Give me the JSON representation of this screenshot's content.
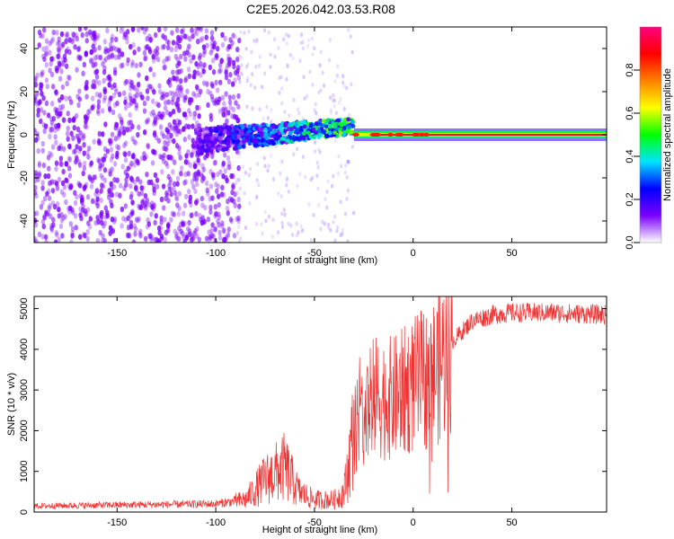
{
  "title": "C2E5.2026.042.03.53.R08",
  "chart_data": [
    {
      "type": "heatmap",
      "name": "spectrogram",
      "xlabel": "Height of straight line (km)",
      "ylabel": "Frequency (Hz)",
      "xlim": [
        -192,
        98
      ],
      "ylim": [
        -50,
        50
      ],
      "xticks": [
        -150,
        -100,
        -50,
        0,
        50
      ],
      "yticks": [
        -40,
        -20,
        0,
        20,
        40
      ],
      "colorbar": {
        "label": "Normalized spectral amplitude",
        "range": [
          0,
          1
        ],
        "ticks": [
          "0.0",
          "0.2",
          "0.4",
          "0.6",
          "0.8"
        ],
        "colors": [
          "#ffffff",
          "#7b00ff",
          "#0000ff",
          "#00e5ff",
          "#00ff00",
          "#ffff00",
          "#ff8000",
          "#ff0000",
          "#ff0080"
        ]
      },
      "features": [
        {
          "region": "noise",
          "x_range": [
            -192,
            -88
          ],
          "freq_range": [
            -50,
            50
          ],
          "amplitude": 0.12
        },
        {
          "region": "onset",
          "x_range": [
            -110,
            -30
          ],
          "freq_center_start": -3,
          "freq_center_end": 4,
          "amplitude": 0.35
        },
        {
          "region": "carrier",
          "x_range": [
            -30,
            98
          ],
          "freq_center": 0,
          "amplitude": 0.9
        }
      ]
    },
    {
      "type": "line",
      "name": "snr",
      "xlabel": "Height of straight line (km)",
      "ylabel": "SNR (10 * v/v)",
      "xlim": [
        -192,
        98
      ],
      "ylim": [
        0,
        5300
      ],
      "xticks": [
        -150,
        -100,
        -50,
        0,
        50
      ],
      "yticks": [
        0,
        1000,
        2000,
        3000,
        4000,
        5000
      ],
      "color": "#ee3333",
      "envelope": [
        {
          "x": -192,
          "y": 150
        },
        {
          "x": -100,
          "y": 200
        },
        {
          "x": -85,
          "y": 300
        },
        {
          "x": -75,
          "y": 800
        },
        {
          "x": -65,
          "y": 1100
        },
        {
          "x": -58,
          "y": 500
        },
        {
          "x": -50,
          "y": 300
        },
        {
          "x": -40,
          "y": 300
        },
        {
          "x": -35,
          "y": 500
        },
        {
          "x": -30,
          "y": 2000
        },
        {
          "x": -20,
          "y": 2800
        },
        {
          "x": -10,
          "y": 2800
        },
        {
          "x": 0,
          "y": 3100
        },
        {
          "x": 10,
          "y": 3400
        },
        {
          "x": 20,
          "y": 4200
        },
        {
          "x": 30,
          "y": 4700
        },
        {
          "x": 40,
          "y": 4850
        },
        {
          "x": 50,
          "y": 4900
        },
        {
          "x": 70,
          "y": 4900
        },
        {
          "x": 98,
          "y": 4850
        }
      ]
    }
  ]
}
